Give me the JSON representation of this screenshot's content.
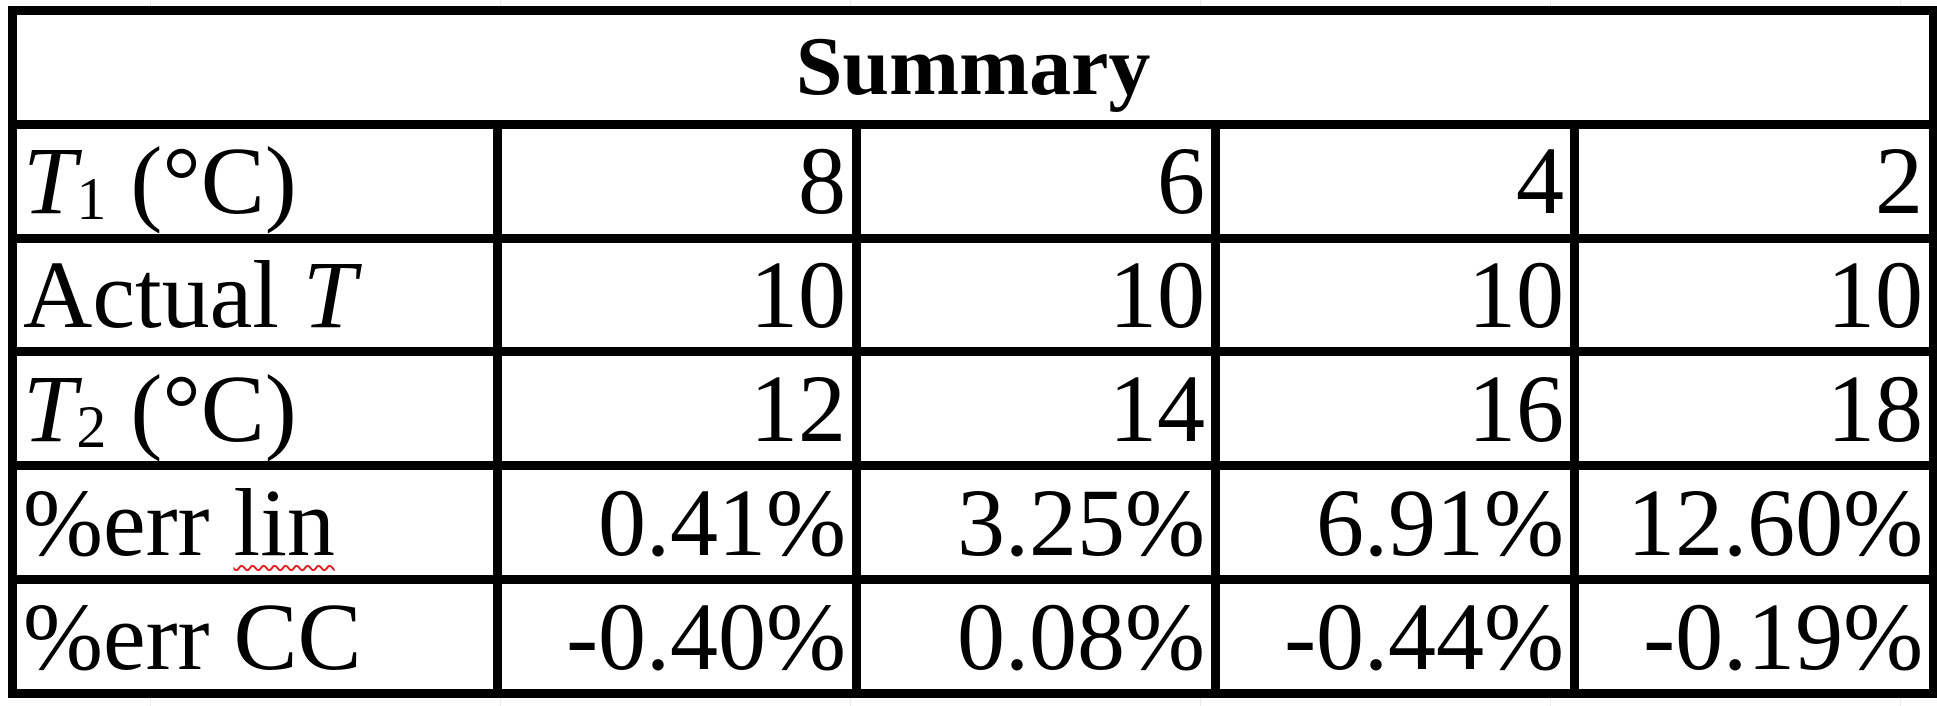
{
  "title": "Summary",
  "rows": [
    {
      "label": {
        "var": "T",
        "sub": "1",
        "unit": " (°C)"
      },
      "values": [
        "8",
        "6",
        "4",
        "2"
      ]
    },
    {
      "label": {
        "prefix": "Actual ",
        "var": "T"
      },
      "values": [
        "10",
        "10",
        "10",
        "10"
      ]
    },
    {
      "label": {
        "var": "T",
        "sub": "2",
        "unit": " (°C)"
      },
      "values": [
        "12",
        "14",
        "16",
        "18"
      ]
    },
    {
      "label": {
        "prefix": "%err ",
        "flagged": "lin"
      },
      "values": [
        "0.41%",
        "3.25%",
        "6.91%",
        "12.60%"
      ]
    },
    {
      "label": {
        "prefix": "%err CC"
      },
      "values": [
        "-0.40%",
        "0.08%",
        "-0.44%",
        "-0.19%"
      ]
    }
  ]
}
